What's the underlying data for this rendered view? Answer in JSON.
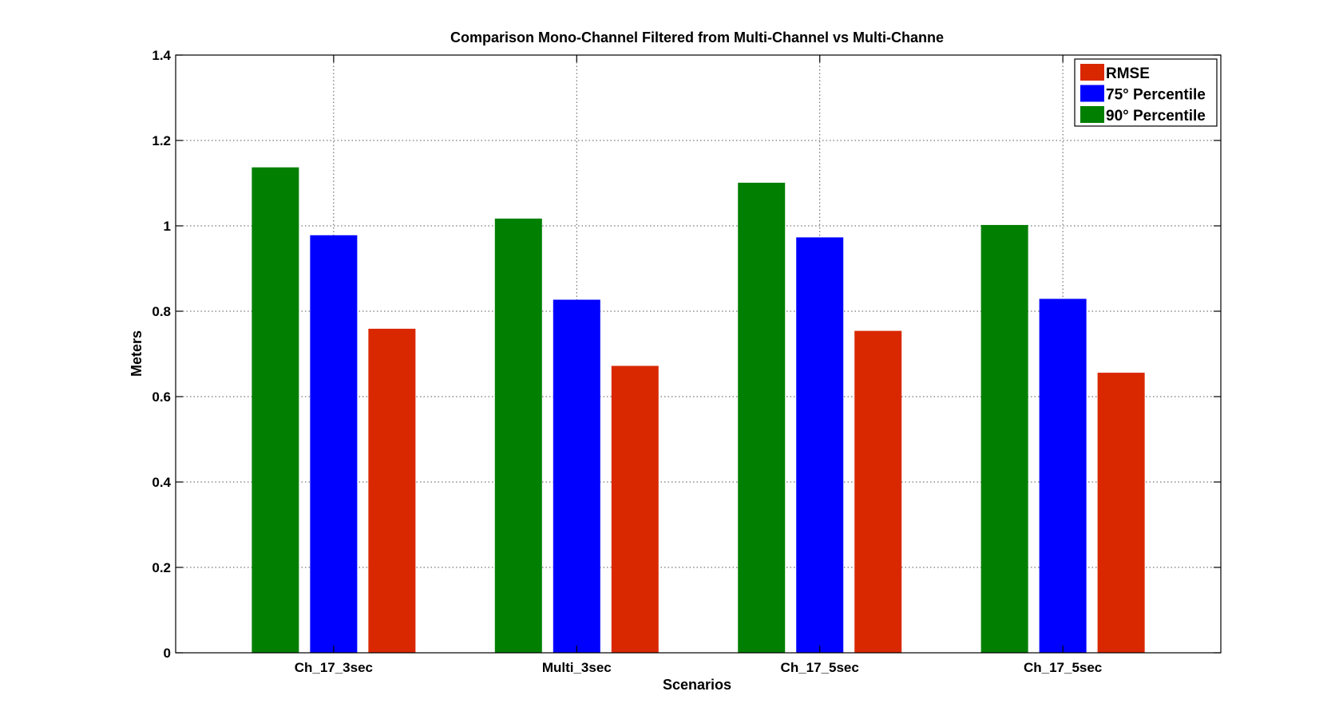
{
  "chart_data": {
    "type": "bar",
    "title": "Comparison Mono-Channel Filtered from Multi-Channel vs Multi-Channe",
    "xlabel": "Scenarios",
    "ylabel": "Meters",
    "categories": [
      "Ch_17_3sec",
      "Multi_3sec",
      "Ch_17_5sec",
      "Ch_17_5sec"
    ],
    "series": [
      {
        "name": "90° Percentile",
        "color": "#007f00",
        "values": [
          1.137,
          1.017,
          1.101,
          1.002
        ]
      },
      {
        "name": "75° Percentile",
        "color": "#0000ff",
        "values": [
          0.978,
          0.827,
          0.973,
          0.829
        ]
      },
      {
        "name": "RMSE",
        "color": "#d92800",
        "values": [
          0.759,
          0.672,
          0.754,
          0.656
        ]
      }
    ],
    "legend_order": [
      "RMSE",
      "75° Percentile",
      "90° Percentile"
    ],
    "ylim": [
      0,
      1.4
    ],
    "yticks": [
      "0",
      "0.2",
      "0.4",
      "0.6",
      "0.8",
      "1",
      "1.2",
      "1.4"
    ],
    "grid": true,
    "grid_style": "dotted",
    "legend_position": "top-right"
  }
}
